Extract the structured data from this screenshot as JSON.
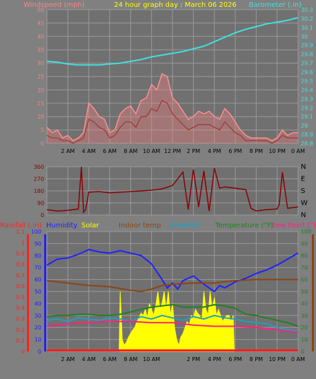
{
  "colors": {
    "background": "#808080",
    "plot_bg": "#707070",
    "grid": "#9a9a9a",
    "title": "#ffff00",
    "windspeed": "#ff8080",
    "gust": "#ff9090",
    "wind_avg": "#a04040",
    "barometer": "#40e0e0",
    "direction": "#8b0000",
    "rainfall": "#ff2020",
    "humidity": "#2020ff",
    "solar": "#ffff00",
    "indoor": "#8b4513",
    "windchill": "#20a0c0",
    "temperature": "#208020",
    "dewpoint": "#ff2080"
  },
  "chart_data": [
    {
      "type": "line",
      "title": "24 hour graph day : March 06 2026",
      "ylabel_left": "Windspeed (mph)",
      "ylabel_right": "Barometer (.in)",
      "x_ticks": [
        "2 AM",
        "4 AM",
        "6 AM",
        "8 AM",
        "10 AM",
        "12 PM",
        "2 PM",
        "4 PM",
        "6 PM",
        "8 PM",
        "10 PM",
        "0 AM"
      ],
      "x_range": [
        0,
        24
      ],
      "y_left_ticks": [
        "0",
        "5",
        "10",
        "15",
        "20",
        "25",
        "30",
        "35",
        "40",
        "45",
        "50"
      ],
      "y_left_range": [
        0,
        50
      ],
      "y_right_ticks": [
        "28.8",
        "28.9",
        "29",
        "29.1",
        "29.2",
        "29.3",
        "29.4",
        "29.5",
        "29.6",
        "29.7",
        "29.8",
        "29.9",
        "30",
        "30.1",
        "30.2",
        "30.3"
      ],
      "y_right_range": [
        28.8,
        30.3
      ],
      "grid": true,
      "series": [
        {
          "name": "Windspeed (mph)",
          "axis": "left",
          "style": "gust",
          "x": [
            0,
            0.5,
            1,
            1.5,
            2,
            2.5,
            3,
            3.5,
            4,
            4.5,
            5,
            5.5,
            6,
            6.5,
            7,
            7.5,
            8,
            8.5,
            9,
            9.5,
            10,
            10.5,
            11,
            11.5,
            12,
            12.5,
            13,
            13.5,
            14,
            14.5,
            15,
            15.5,
            16,
            16.5,
            17,
            17.5,
            18,
            18.5,
            19,
            19.5,
            20,
            20.5,
            21,
            21.5,
            22,
            22.5,
            23,
            23.5,
            24
          ],
          "values": [
            6,
            4,
            5,
            2,
            3,
            1,
            2,
            4,
            15,
            13,
            10,
            9,
            4,
            5,
            11,
            13,
            14,
            11,
            16,
            17,
            22,
            20,
            26,
            25,
            17,
            15,
            12,
            9,
            10,
            12,
            11,
            12,
            10,
            9,
            13,
            11,
            8,
            5,
            3,
            2,
            2,
            2,
            2,
            1,
            2,
            5,
            3,
            4,
            4
          ]
        },
        {
          "name": "Wind average",
          "axis": "left",
          "style": "avg",
          "x": [
            0,
            0.5,
            1,
            1.5,
            2,
            2.5,
            3,
            3.5,
            4,
            4.5,
            5,
            5.5,
            6,
            6.5,
            7,
            7.5,
            8,
            8.5,
            9,
            9.5,
            10,
            10.5,
            11,
            11.5,
            12,
            12.5,
            13,
            13.5,
            14,
            14.5,
            15,
            15.5,
            16,
            16.5,
            17,
            17.5,
            18,
            18.5,
            19,
            19.5,
            20,
            20.5,
            21,
            21.5,
            22,
            22.5,
            23,
            23.5,
            24
          ],
          "values": [
            3,
            2,
            2,
            1,
            1,
            0,
            1,
            2,
            9,
            8,
            6,
            5,
            2,
            3,
            6,
            8,
            8,
            6,
            10,
            10,
            13,
            12,
            16,
            15,
            11,
            9,
            7,
            5,
            6,
            7,
            7,
            7,
            6,
            5,
            8,
            6,
            4,
            3,
            1,
            1,
            1,
            1,
            1,
            0,
            1,
            3,
            2,
            2,
            2
          ]
        },
        {
          "name": "Barometer (.in)",
          "axis": "right",
          "style": "baro",
          "x": [
            0,
            1,
            2,
            3,
            4,
            5,
            6,
            7,
            8,
            9,
            10,
            11,
            12,
            13,
            14,
            15,
            16,
            17,
            18,
            19,
            20,
            21,
            22,
            23,
            24
          ],
          "values": [
            29.72,
            29.71,
            29.69,
            29.68,
            29.68,
            29.68,
            29.69,
            29.7,
            29.72,
            29.74,
            29.77,
            29.79,
            29.81,
            29.83,
            29.86,
            29.89,
            29.94,
            29.99,
            30.04,
            30.08,
            30.11,
            30.14,
            30.16,
            30.18,
            30.21
          ]
        }
      ]
    },
    {
      "type": "line",
      "x_range": [
        0,
        24
      ],
      "y_left_ticks": [
        "0",
        "90",
        "180",
        "270",
        "360"
      ],
      "y_left_range": [
        0,
        360
      ],
      "y_right_ticks": [
        "N",
        "W",
        "S",
        "E",
        "N"
      ],
      "grid": true,
      "series": [
        {
          "name": "Wind direction",
          "axis": "left",
          "x": [
            0,
            1,
            2,
            3,
            3.3,
            3.5,
            3.7,
            4,
            5,
            6,
            7,
            8,
            9,
            10,
            11,
            12,
            13,
            13.5,
            14,
            14.5,
            15,
            15.5,
            16,
            16.5,
            17,
            18,
            19,
            19.5,
            20,
            21,
            22,
            22.2,
            22.5,
            23,
            24
          ],
          "values": [
            40,
            30,
            35,
            45,
            360,
            20,
            40,
            170,
            175,
            165,
            170,
            175,
            180,
            185,
            195,
            220,
            320,
            40,
            340,
            60,
            330,
            30,
            350,
            200,
            210,
            200,
            190,
            50,
            30,
            40,
            45,
            80,
            320,
            50,
            60
          ]
        }
      ]
    },
    {
      "type": "line",
      "x_ticks": [
        "2 AM",
        "4 AM",
        "6 AM",
        "8 AM",
        "10 AM",
        "2 PM",
        "4 PM",
        "6 PM",
        "8 PM",
        "10 PM",
        "0 AM"
      ],
      "x_range": [
        0,
        24
      ],
      "legend": [
        "Rainfall (.in)",
        "Humidity",
        "Solar",
        "Indoor temp",
        "Windchill",
        "Temperature (°F)",
        "Dew Point (°F)"
      ],
      "y_left_ticks": [
        "0",
        "10",
        "20",
        "30",
        "40",
        "50",
        "60",
        "70",
        "80",
        "90",
        "100"
      ],
      "y_left_range": [
        0,
        100
      ],
      "y_rain_ticks": [
        "0",
        "0.1",
        "0.2",
        "0.3",
        "0.4",
        "0.5",
        "0.6",
        "0.7",
        "0.8",
        "0.9",
        "1",
        "1.1"
      ],
      "y_rain_range": [
        0,
        1.1
      ],
      "y_right_ticks": [
        "0",
        "10",
        "20",
        "30",
        "40",
        "50",
        "60",
        "70",
        "80",
        "90",
        "100"
      ],
      "y_right_range": [
        0,
        100
      ],
      "grid": true,
      "series": [
        {
          "name": "Humidity",
          "axis": "left",
          "x": [
            0,
            1,
            2,
            3,
            4,
            5,
            6,
            7,
            8,
            9,
            10,
            11,
            11.5,
            12,
            12.5,
            13,
            14,
            15,
            16,
            16.5,
            17,
            18,
            19,
            20,
            21,
            22,
            23,
            24
          ],
          "values": [
            72,
            77,
            78,
            81,
            85,
            83,
            82,
            84,
            82,
            80,
            73,
            60,
            53,
            57,
            52,
            59,
            63,
            56,
            50,
            55,
            53,
            58,
            61,
            65,
            68,
            72,
            77,
            82
          ]
        },
        {
          "name": "Indoor temp",
          "axis": "right",
          "x": [
            0,
            2,
            4,
            6,
            8,
            9,
            10,
            11,
            12,
            14,
            16,
            18,
            20,
            22,
            24
          ],
          "values": [
            59,
            57,
            55,
            54,
            51,
            50,
            52,
            55,
            56,
            57,
            57,
            59,
            60,
            60,
            60
          ]
        },
        {
          "name": "Temperature (°F)",
          "axis": "right",
          "x": [
            0,
            1,
            2,
            3,
            4,
            5,
            6,
            7,
            8,
            9,
            10,
            11,
            12,
            13,
            14,
            15,
            16,
            17,
            18,
            19,
            20,
            21,
            22,
            23,
            24
          ],
          "values": [
            29,
            30,
            30,
            31,
            31,
            30,
            30,
            31,
            33,
            35,
            37,
            38,
            39,
            37,
            37,
            37,
            39,
            38,
            36,
            31,
            30,
            28,
            26,
            24,
            21
          ]
        },
        {
          "name": "Windchill",
          "axis": "right",
          "x": [
            0,
            1,
            2,
            3,
            4,
            5,
            6,
            7,
            8,
            9,
            10,
            11,
            12,
            13,
            14,
            15,
            16,
            17,
            18,
            19,
            20,
            21,
            22,
            23,
            24
          ],
          "values": [
            26,
            27,
            25,
            28,
            27,
            26,
            28,
            27,
            25,
            29,
            27,
            30,
            28,
            26,
            29,
            27,
            30,
            28,
            27,
            25,
            24,
            23,
            20,
            18,
            17
          ]
        },
        {
          "name": "Dew Point (°F)",
          "axis": "right",
          "x": [
            0,
            2,
            4,
            6,
            8,
            10,
            12,
            14,
            16,
            18,
            20,
            22,
            24
          ],
          "values": [
            21,
            23,
            24,
            25,
            25,
            24,
            24,
            22,
            21,
            21,
            20,
            18,
            16
          ]
        },
        {
          "name": "Solar",
          "axis": "left",
          "style": "fill",
          "x": [
            6.9,
            7,
            7.2,
            7.4,
            7.6,
            7.8,
            8,
            8.2,
            8.4,
            8.6,
            8.8,
            9,
            9.2,
            9.4,
            9.6,
            9.8,
            10,
            10.2,
            10.4,
            10.6,
            10.8,
            11,
            11.2,
            11.4,
            11.6,
            11.8,
            12,
            12.2,
            12.4,
            12.6,
            12.8,
            13,
            13.2,
            13.4,
            13.6,
            13.8,
            14,
            14.2,
            14.4,
            14.6,
            14.8,
            15,
            15.2,
            15.4,
            15.6,
            15.8,
            16,
            16.2,
            16.4,
            16.6,
            16.8,
            17,
            17.2,
            17.4,
            17.6,
            17.8,
            17.9
          ],
          "values": [
            0,
            50,
            10,
            5,
            8,
            12,
            15,
            18,
            20,
            25,
            28,
            32,
            30,
            35,
            28,
            40,
            35,
            30,
            38,
            50,
            35,
            40,
            50,
            35,
            50,
            30,
            40,
            20,
            10,
            5,
            12,
            15,
            20,
            25,
            22,
            30,
            28,
            35,
            32,
            30,
            25,
            50,
            35,
            30,
            50,
            35,
            45,
            30,
            35,
            30,
            25,
            28,
            30,
            30,
            25,
            30,
            0
          ]
        },
        {
          "name": "Rainfall (.in)",
          "axis": "rain",
          "x": [
            0,
            24
          ],
          "values": [
            0,
            0
          ]
        }
      ]
    }
  ]
}
